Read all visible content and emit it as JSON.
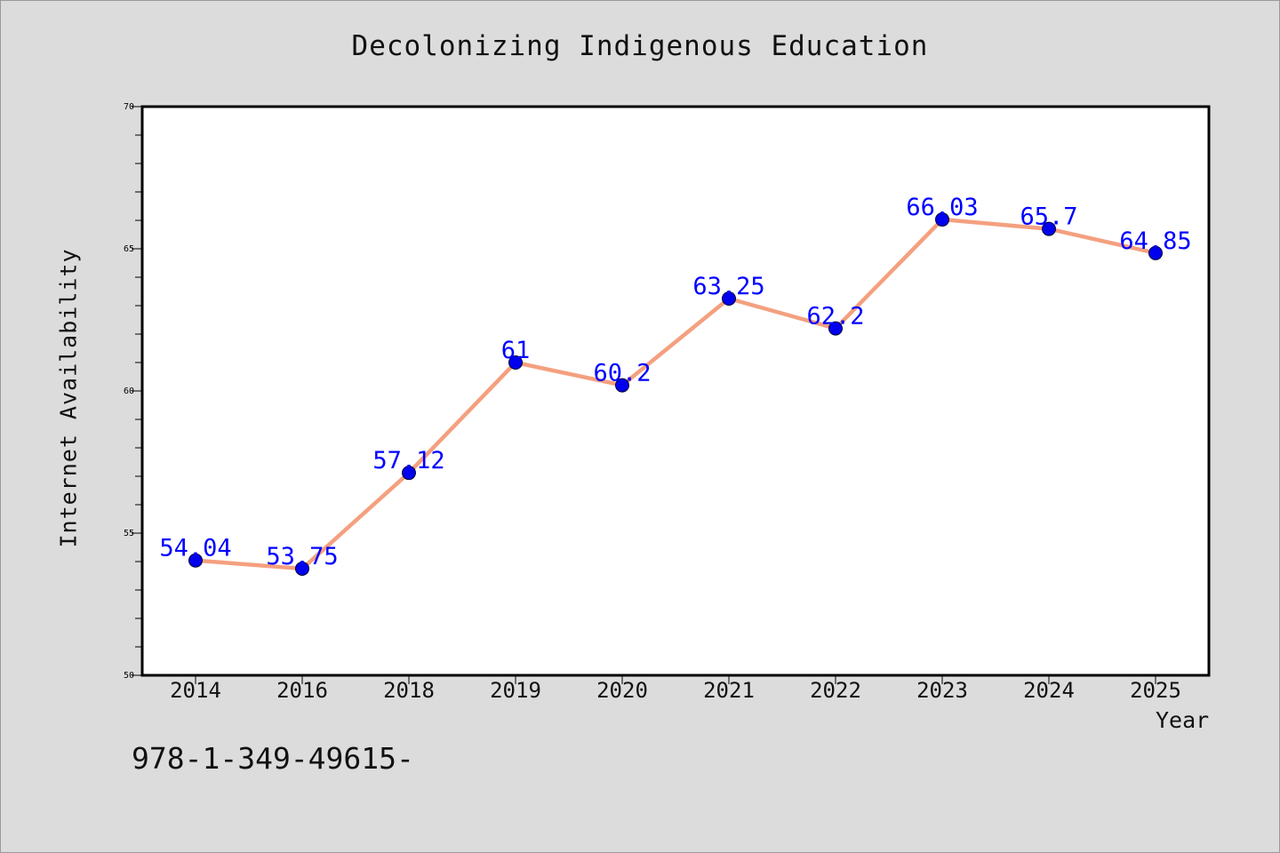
{
  "chart_data": {
    "type": "line",
    "title": "Decolonizing Indigenous Education",
    "xlabel": "Year",
    "ylabel": "Internet Availability",
    "categories": [
      "2014",
      "2016",
      "2018",
      "2019",
      "2020",
      "2021",
      "2022",
      "2023",
      "2024",
      "2025"
    ],
    "values": [
      54.04,
      53.75,
      57.12,
      61,
      60.2,
      63.25,
      62.2,
      66.03,
      65.7,
      64.85
    ],
    "data_labels": [
      "54.04",
      "53.75",
      "57.12",
      "61",
      "60.2",
      "63.25",
      "62.2",
      "66.03",
      "65.7",
      "64.85"
    ],
    "ylim": [
      50,
      70
    ],
    "yticks": [
      "50",
      "55",
      "60",
      "65",
      "70"
    ],
    "grid": false,
    "line_color": "#f4a07f",
    "marker_color": "#0000ee",
    "label_color": "#0000ff"
  },
  "footer_text": "978-1-349-49615-"
}
